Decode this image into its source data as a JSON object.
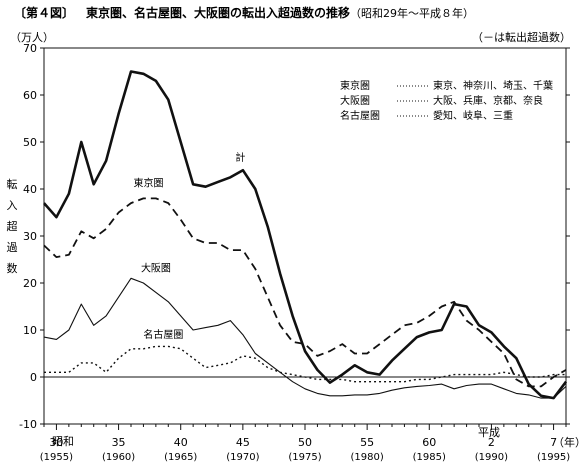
{
  "chart_data": {
    "type": "line",
    "figure_label": "〔第４図〕",
    "title": "東京圏、名古屋圏、大阪圏の転出入超過数の推移",
    "subtitle": "（昭和29年〜平成８年）",
    "y_unit": "（万人）",
    "negative_note": "（－は転出超過数）",
    "ylabel": "転入超過数",
    "ylim": [
      -10,
      70
    ],
    "yticks": [
      "70",
      "60",
      "50",
      "40",
      "30",
      "20",
      "10",
      "0",
      "-10"
    ],
    "xlim": [
      1954,
      1996
    ],
    "era_showa": "昭和",
    "era_heisei": "平成",
    "year_unit": "（年）",
    "xticks": [
      {
        "x": 1955,
        "label": "30",
        "western": "(1955)"
      },
      {
        "x": 1960,
        "label": "35",
        "western": "(1960)"
      },
      {
        "x": 1965,
        "label": "40",
        "western": "(1965)"
      },
      {
        "x": 1970,
        "label": "45",
        "western": "(1970)"
      },
      {
        "x": 1975,
        "label": "50",
        "western": "(1975)"
      },
      {
        "x": 1980,
        "label": "55",
        "western": "(1980)"
      },
      {
        "x": 1985,
        "label": "60",
        "western": "(1985)"
      },
      {
        "x": 1990,
        "label": "2",
        "western": "(1990)"
      },
      {
        "x": 1995,
        "label": "7",
        "western": "(1995)"
      }
    ],
    "legend": [
      {
        "name": "東京圏",
        "members": "東京、神奈川、埼玉、千葉"
      },
      {
        "name": "大阪圏",
        "members": "大阪、兵庫、京都、奈良"
      },
      {
        "name": "名古屋圏",
        "members": "愛知、岐阜、三重"
      }
    ],
    "x": [
      1954,
      1955,
      1956,
      1957,
      1958,
      1959,
      1960,
      1961,
      1962,
      1963,
      1964,
      1965,
      1966,
      1967,
      1968,
      1969,
      1970,
      1971,
      1972,
      1973,
      1974,
      1975,
      1976,
      1977,
      1978,
      1979,
      1980,
      1981,
      1982,
      1983,
      1984,
      1985,
      1986,
      1987,
      1988,
      1989,
      1990,
      1991,
      1992,
      1993,
      1994,
      1995,
      1996
    ],
    "series": [
      {
        "name": "計",
        "style": "total",
        "values": [
          37,
          34,
          39,
          50,
          41,
          46,
          56,
          65,
          64.5,
          63,
          59,
          50,
          41,
          40.5,
          41.5,
          42.5,
          44,
          40,
          32,
          22,
          13,
          5.5,
          1.5,
          -1.2,
          0.5,
          2.5,
          1,
          0.5,
          3.5,
          6,
          8.5,
          9.5,
          10,
          15.5,
          15,
          11,
          9.5,
          6.5,
          4,
          -1.5,
          -4,
          -4.5,
          -1
        ]
      },
      {
        "name": "東京圏",
        "style": "dashed",
        "values": [
          28,
          25.5,
          26,
          31,
          29.5,
          31.5,
          35,
          37,
          38,
          38,
          37,
          33.5,
          29.5,
          28.5,
          28.5,
          27,
          27,
          23,
          17,
          11,
          7.5,
          7,
          4.5,
          5.5,
          7,
          5,
          5,
          7,
          9,
          11,
          11.5,
          13,
          15,
          16,
          12,
          10,
          7.5,
          5,
          -0.5,
          -2,
          -2,
          0,
          1.5
        ]
      },
      {
        "name": "大阪圏",
        "style": "solid",
        "values": [
          8.5,
          8,
          10,
          15.5,
          11,
          13,
          17,
          21,
          20,
          18,
          16,
          13,
          10,
          10.5,
          11,
          12,
          9,
          5,
          3,
          1,
          -1,
          -2.5,
          -3.5,
          -4,
          -4,
          -3.8,
          -3.8,
          -3.5,
          -2.8,
          -2.3,
          -2,
          -1.8,
          -1.5,
          -2.5,
          -1.8,
          -1.5,
          -1.5,
          -2.5,
          -3.5,
          -3.8,
          -4.5,
          -4.5,
          -2
        ]
      },
      {
        "name": "名古屋圏",
        "style": "dotted",
        "values": [
          1,
          1,
          1,
          3,
          3,
          1,
          4,
          6,
          6,
          6.5,
          6.5,
          6,
          4,
          2,
          2.5,
          3,
          4.5,
          4,
          2,
          1,
          0.5,
          0,
          -0.5,
          -0.5,
          -0.5,
          -1,
          -1,
          -1,
          -1,
          -1,
          -0.5,
          -0.5,
          0,
          0.5,
          0.5,
          0.5,
          0.5,
          1,
          0.5,
          0,
          0,
          0.5,
          0.5
        ]
      }
    ]
  }
}
